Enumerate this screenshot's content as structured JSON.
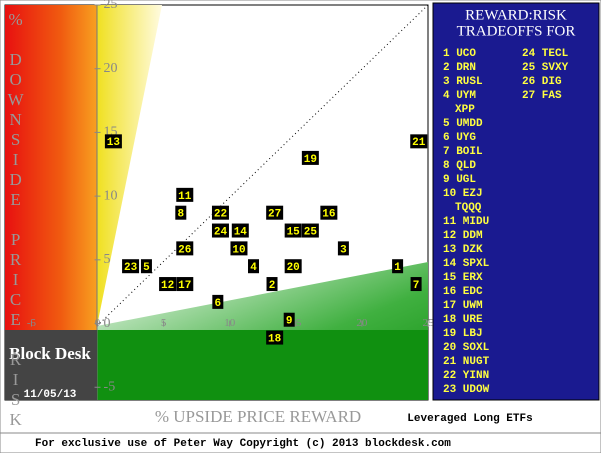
{
  "chart_data": {
    "type": "scatter",
    "ylabel": "% DOWNSIDE PRICE RISK",
    "xlabel": "% UPSIDE PRICE REWARD",
    "subtitle": "Leveraged Long ETFs",
    "brand": "Block Desk",
    "date": "11/05/13",
    "footer": "For exclusive use of Peter Way Copyright (c) 2013 blockdesk.com",
    "xlim": [
      -7,
      25
    ],
    "ylim": [
      -6,
      25
    ],
    "xticks": [
      -5,
      0,
      5,
      10,
      15,
      20,
      25
    ],
    "yticks": [
      -5,
      0,
      5,
      10,
      15,
      20,
      25
    ],
    "point_color": "#000000",
    "label_color": "#ffff00",
    "points": {
      "labels": [
        "13",
        "21",
        "19",
        "11",
        "8",
        "22",
        "27",
        "16",
        "24",
        "14",
        "15",
        "25",
        "26",
        "10",
        "3",
        "23",
        "5",
        "4",
        "20",
        "1",
        "12",
        "17",
        "2",
        "7",
        "6",
        "9",
        "18"
      ],
      "x": [
        1.2,
        24.3,
        16.1,
        6.6,
        6.3,
        9.3,
        13.4,
        17.5,
        9.3,
        10.8,
        14.8,
        16.1,
        6.6,
        10.7,
        18.6,
        2.5,
        3.7,
        11.8,
        14.8,
        22.7,
        5.3,
        6.6,
        13.2,
        24.1,
        9.1,
        14.5,
        13.4
      ],
      "y": [
        14.3,
        14.3,
        13.0,
        10.1,
        8.7,
        8.7,
        8.7,
        8.7,
        7.3,
        7.3,
        7.3,
        7.3,
        5.9,
        5.9,
        5.9,
        4.5,
        4.5,
        4.5,
        4.5,
        4.5,
        3.1,
        3.1,
        3.1,
        3.1,
        1.7,
        0.3,
        -1.1
      ]
    },
    "panel": {
      "title": [
        "REWARD:RISK",
        "TRADEOFFS FOR"
      ],
      "col1": [
        "1 UCO",
        "2 DRN",
        "3 RUSL",
        "4 UYM",
        "XPP",
        "5 UMDD",
        "6 UYG",
        "7 BOIL",
        "8 QLD",
        "9 UGL",
        "10 EZJ",
        "TQQQ",
        "11 MIDU",
        "12 DDM",
        "13 DZK",
        "14 SPXL",
        "15 ERX",
        "16 EDC",
        "17 UWM",
        "18 URE",
        "19 LBJ",
        "20 SOXL",
        "21 NUGT",
        "22 YINN",
        "23 UDOW"
      ],
      "col2": [
        "24 TECL",
        "25 SVXY",
        "26 DIG",
        "27 FAS"
      ]
    }
  }
}
